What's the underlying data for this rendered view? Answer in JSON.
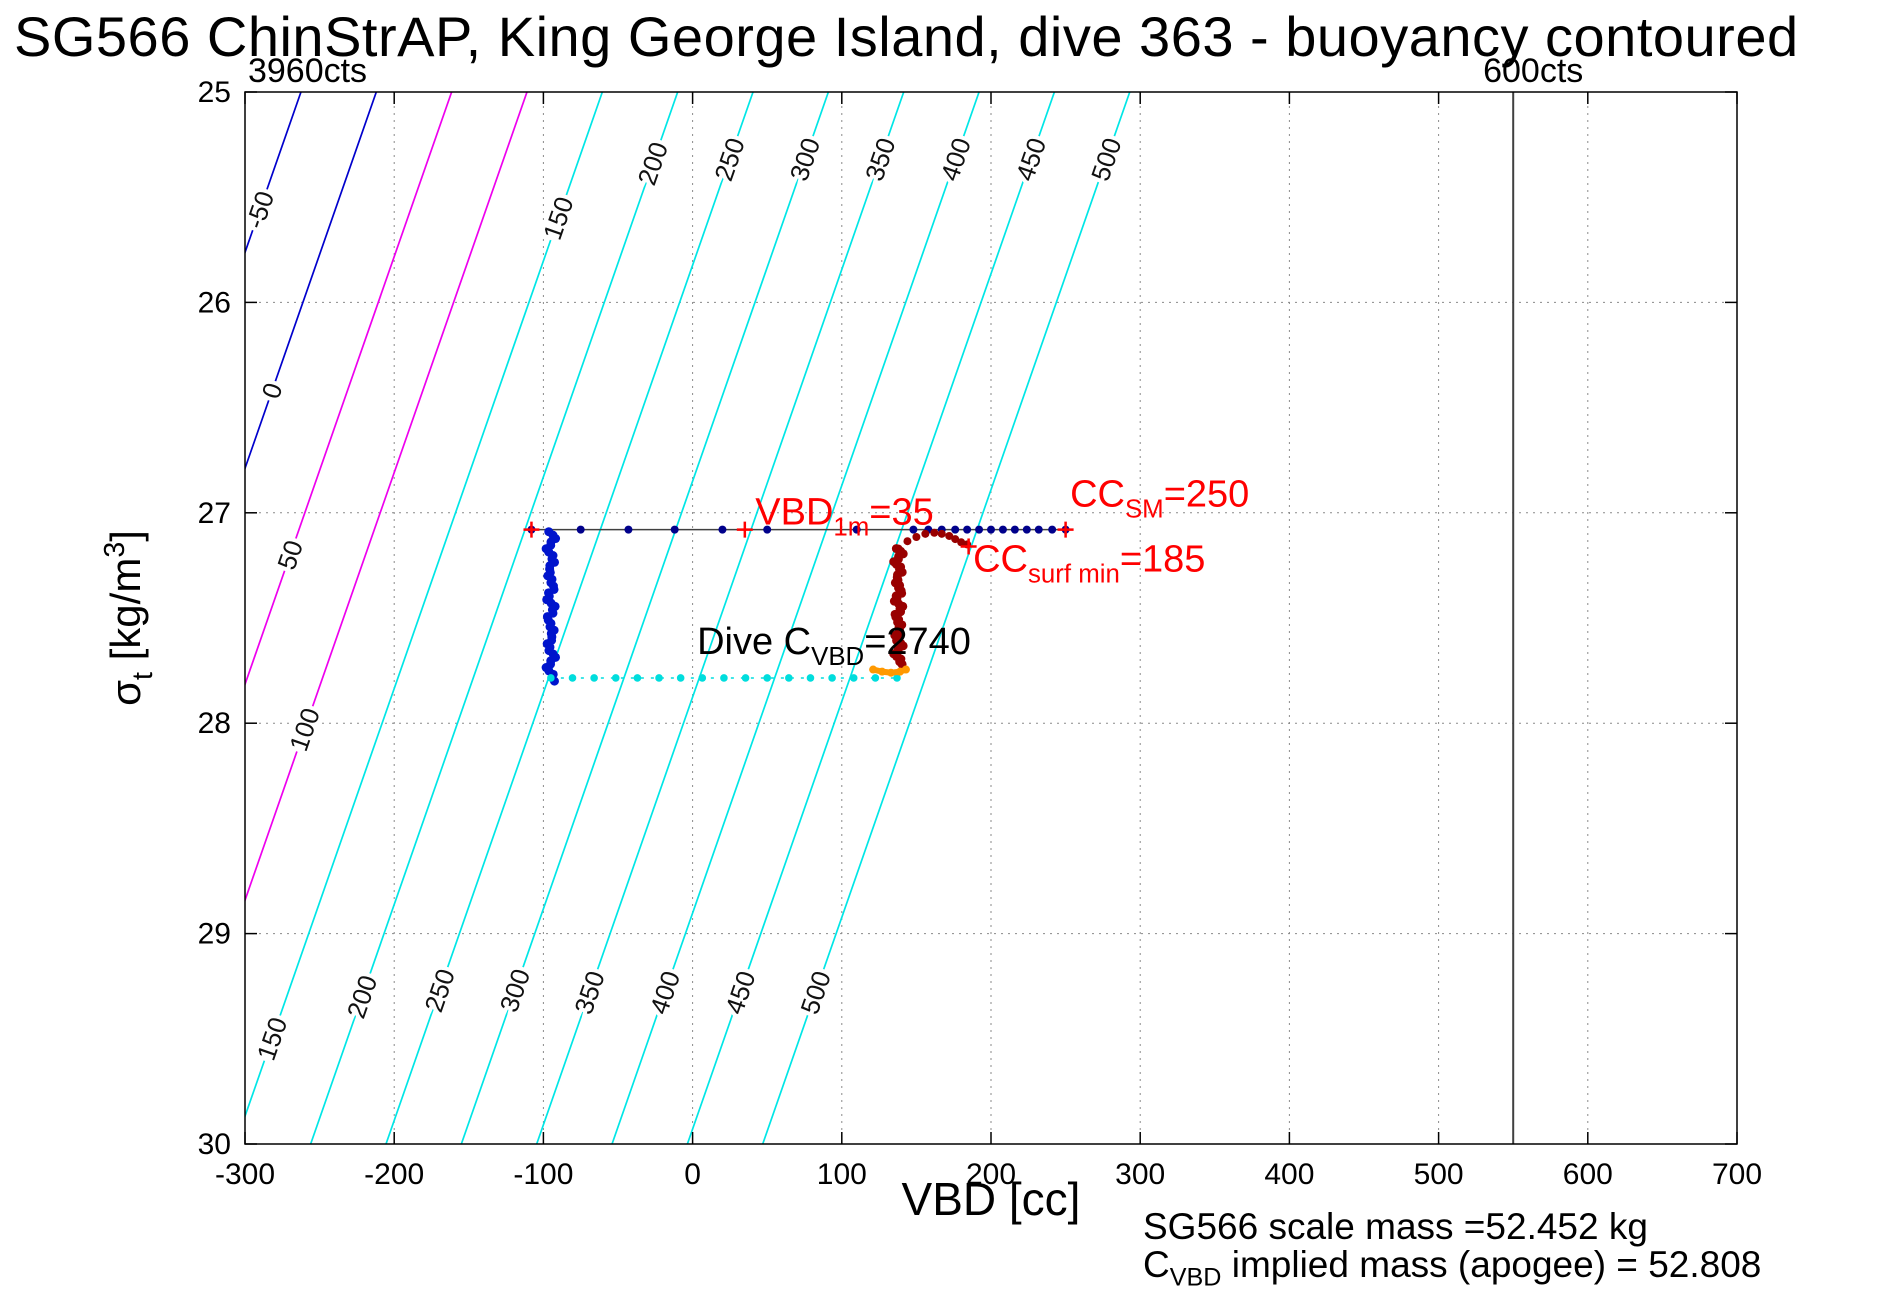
{
  "chart_data": {
    "type": "scatter",
    "title": "SG566 ChinStrAP, King George Island, dive 363 - buoyancy contoured",
    "xlabel": "VBD [cc]",
    "ylabel": "σ_t [kg/m3]",
    "ylabel_segments": [
      {
        "t": "σ"
      },
      {
        "sub": "t"
      },
      {
        "t": " [kg/m"
      },
      {
        "sup": "3"
      },
      {
        "t": "]"
      }
    ],
    "xlim": [
      -300,
      700
    ],
    "ylim": [
      25,
      30
    ],
    "y_axis_reversed": true,
    "grid": true,
    "legend": "none",
    "x_ticks": [
      -300,
      -200,
      -100,
      0,
      100,
      200,
      300,
      400,
      500,
      600,
      700
    ],
    "y_ticks": [
      25,
      26,
      27,
      28,
      29,
      30
    ],
    "vbd_limit_lines": {
      "left_label": {
        "text": "3960cts",
        "vbd": -298
      },
      "right_label": {
        "text": "600cts",
        "vbd": 550
      },
      "right_line_vbd": 550,
      "line_color": "#404040"
    },
    "contours": {
      "description": "Diagonal buoyancy contours in cc, value increases to the right; vbd_at_sigma_min is the VBD where the contour crosses sigma_t = 25",
      "slope_cc_per_sigma": -49.2,
      "label_color": "#111111",
      "levels": [
        {
          "value": -50,
          "vbd_at_sigma_min": -262.5,
          "color": "#0000cc",
          "label_sigmas": [
            25.56
          ]
        },
        {
          "value": 0,
          "vbd_at_sigma_min": -212.0,
          "color": "#0000cc",
          "label_sigmas": [
            26.42
          ]
        },
        {
          "value": 50,
          "vbd_at_sigma_min": -161.5,
          "color": "#ee00ee",
          "label_sigmas": [
            27.2
          ]
        },
        {
          "value": 100,
          "vbd_at_sigma_min": -111.0,
          "color": "#ee00ee",
          "label_sigmas": [
            28.03
          ]
        },
        {
          "value": 150,
          "vbd_at_sigma_min": -60.5,
          "color": "#00e6e6",
          "label_sigmas": [
            25.6,
            29.5
          ]
        },
        {
          "value": 200,
          "vbd_at_sigma_min": -10.0,
          "color": "#00e6e6",
          "label_sigmas": [
            25.34,
            29.3
          ]
        },
        {
          "value": 250,
          "vbd_at_sigma_min": 40.5,
          "color": "#00e6e6",
          "label_sigmas": [
            25.32,
            29.27
          ]
        },
        {
          "value": 300,
          "vbd_at_sigma_min": 91.0,
          "color": "#00e6e6",
          "label_sigmas": [
            25.32,
            29.27
          ]
        },
        {
          "value": 350,
          "vbd_at_sigma_min": 141.5,
          "color": "#00e6e6",
          "label_sigmas": [
            25.32,
            29.28
          ]
        },
        {
          "value": 400,
          "vbd_at_sigma_min": 192.0,
          "color": "#00e6e6",
          "label_sigmas": [
            25.32,
            29.28
          ]
        },
        {
          "value": 450,
          "vbd_at_sigma_min": 242.5,
          "color": "#00e6e6",
          "label_sigmas": [
            25.32,
            29.28
          ]
        },
        {
          "value": 500,
          "vbd_at_sigma_min": 293.0,
          "color": "#00e6e6",
          "label_sigmas": [
            25.32,
            29.28
          ]
        }
      ]
    },
    "traces": {
      "surface_track": {
        "sigma": 27.08,
        "line_color": "#404040",
        "marker_color": "#00008b",
        "points_vbd": [
          -108,
          -75,
          -43,
          -12,
          20,
          50,
          110,
          148,
          158,
          167,
          176,
          184,
          192,
          200,
          208,
          216,
          224,
          232,
          241,
          250
        ]
      },
      "dive_vbd_column": {
        "vbd": -95,
        "sigma_start": 27.09,
        "sigma_end": 27.8,
        "color": "#0014cc"
      },
      "apogee_track": {
        "sigma": 27.785,
        "vbd_start": -95,
        "vbd_end": 137,
        "color": "#00dddd"
      },
      "climb_vbd_column": {
        "vbd": 138,
        "sigma_start": 27.17,
        "sigma_end": 27.72,
        "color": "#990000"
      },
      "climb_surface_arc": {
        "color": "#990000",
        "points": [
          [
            138,
            27.17
          ],
          [
            144,
            27.135
          ],
          [
            150,
            27.115
          ],
          [
            156,
            27.1
          ],
          [
            162,
            27.095
          ],
          [
            167,
            27.1
          ],
          [
            172,
            27.11
          ],
          [
            176,
            27.125
          ],
          [
            180,
            27.14
          ],
          [
            184,
            27.15
          ]
        ]
      },
      "apogee_maneuver": {
        "color": "#ff9900",
        "points": [
          [
            121,
            27.745
          ],
          [
            127,
            27.755
          ],
          [
            133,
            27.76
          ],
          [
            139,
            27.755
          ],
          [
            143,
            27.745
          ]
        ]
      },
      "red_plus_markers": {
        "color": "#ff0000",
        "points": [
          [
            -108,
            27.08
          ],
          [
            35,
            27.08
          ],
          [
            185,
            27.16
          ],
          [
            250,
            27.08
          ]
        ]
      }
    },
    "annotations": [
      {
        "name": "vbd-1m-label",
        "color": "#ff0000",
        "x": 42,
        "y": 27.055,
        "segments": [
          {
            "t": "VBD"
          },
          {
            "sub": "1m"
          },
          {
            "t": "=35"
          }
        ]
      },
      {
        "name": "cc-sm-label",
        "color": "#ff0000",
        "x": 253,
        "y": 26.97,
        "segments": [
          {
            "t": "CC"
          },
          {
            "sub": "SM"
          },
          {
            "t": "=250"
          }
        ]
      },
      {
        "name": "cc-surf-min-label",
        "color": "#ff0000",
        "x": 188,
        "y": 27.28,
        "segments": [
          {
            "t": "CC"
          },
          {
            "sub": "surf min"
          },
          {
            "t": "=185"
          }
        ]
      },
      {
        "name": "dive-cvbd-label",
        "color": "#000000",
        "x": 3,
        "y": 27.67,
        "segments": [
          {
            "t": "Dive C"
          },
          {
            "sub": "VBD"
          },
          {
            "t": "=2740"
          }
        ]
      }
    ],
    "footer": {
      "line1": "SG566 scale mass =52.452 kg",
      "line2_segments": [
        {
          "t": "C"
        },
        {
          "sub": "VBD"
        },
        {
          "t": " implied mass (apogee) = 52.808"
        }
      ]
    }
  }
}
